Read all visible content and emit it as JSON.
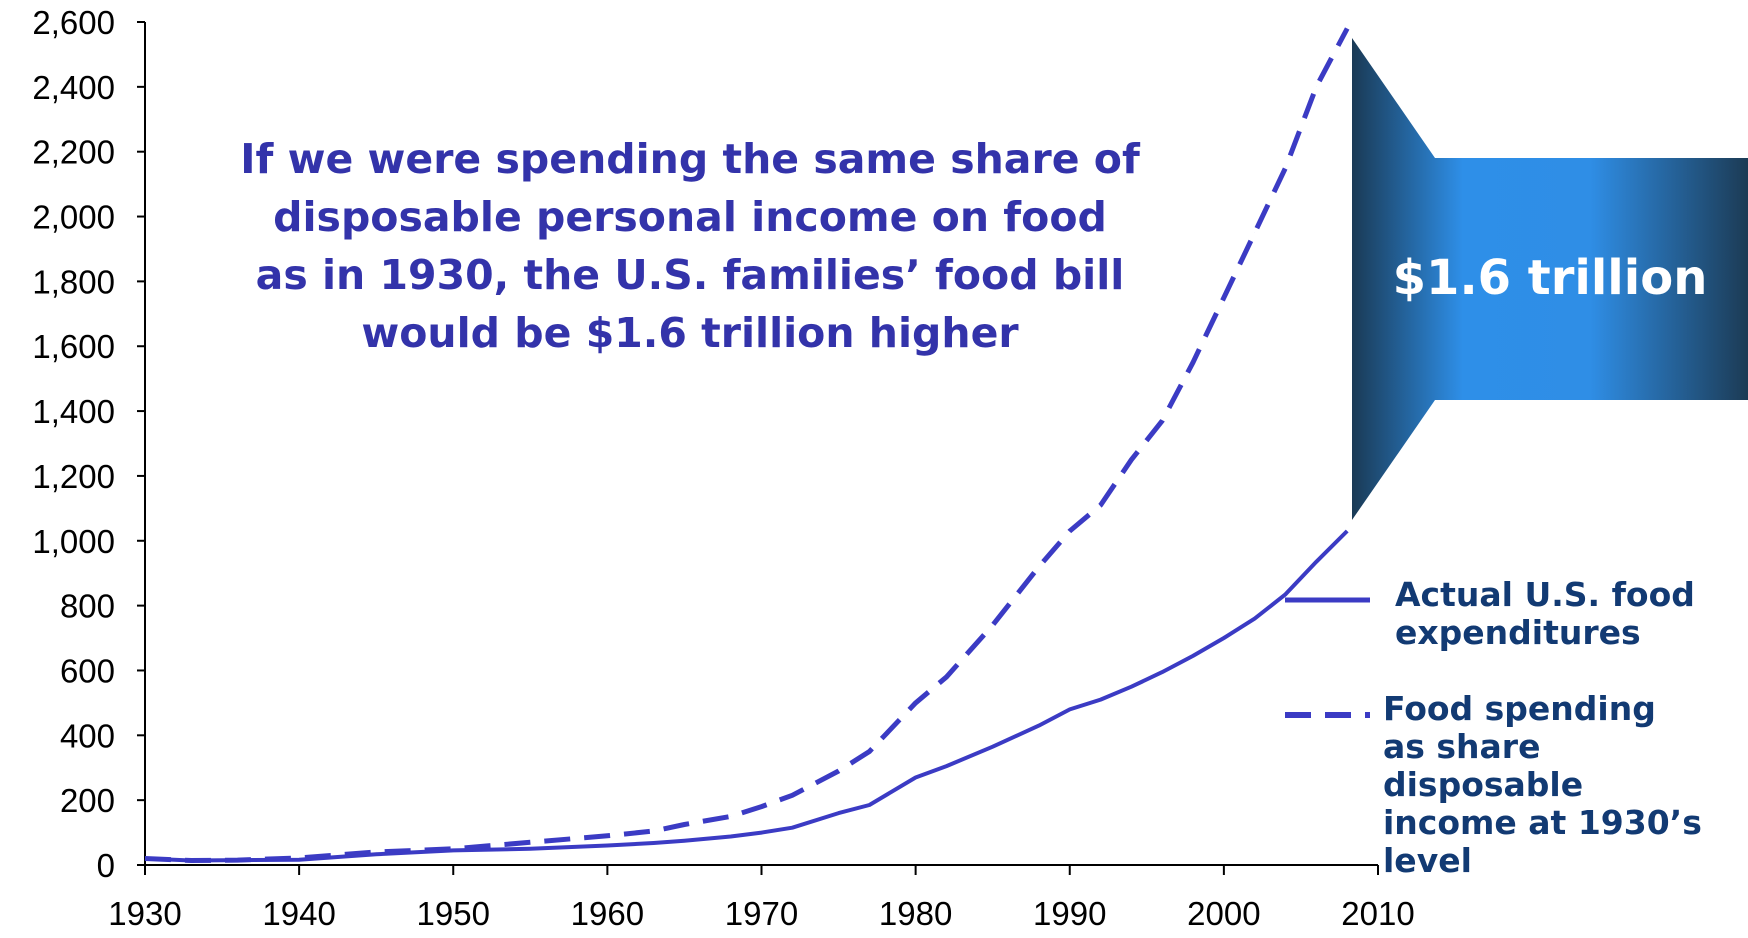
{
  "chart_data": {
    "type": "line",
    "x_range": [
      1930,
      2010
    ],
    "ylim": [
      0,
      2600
    ],
    "x_ticks": [
      "1930",
      "1940",
      "1950",
      "1960",
      "1970",
      "1980",
      "1990",
      "2000",
      "2010"
    ],
    "y_ticks": [
      "0",
      "200",
      "400",
      "600",
      "800",
      "1,000",
      "1,200",
      "1,400",
      "1,600",
      "1,800",
      "2,000",
      "2,200",
      "2,400",
      "2,600"
    ],
    "annotation": "If we were spending the same share of disposable personal income on food as in 1930, the U.S. families’ food bill would be $1.6 trillion higher",
    "callout": "$1.6 trillion",
    "colors": {
      "line": "#3b3bc4",
      "text": "#3333aa",
      "legend_text": "#123a73",
      "arrow_light": "#2e8fe8",
      "arrow_dark": "#1a3a55"
    },
    "series": [
      {
        "name": "Actual U.S. food expenditures",
        "style": "solid",
        "x": [
          1930,
          1933,
          1936,
          1940,
          1945,
          1950,
          1955,
          1960,
          1963,
          1965,
          1968,
          1970,
          1972,
          1975,
          1977,
          1980,
          1982,
          1985,
          1988,
          1990,
          1992,
          1994,
          1996,
          1998,
          2000,
          2002,
          2004,
          2006,
          2008
        ],
        "values": [
          20,
          14,
          15,
          16,
          33,
          45,
          50,
          60,
          68,
          75,
          88,
          100,
          115,
          160,
          185,
          270,
          305,
          365,
          430,
          480,
          510,
          550,
          595,
          645,
          700,
          760,
          835,
          935,
          1030
        ]
      },
      {
        "name": "Food spending as share disposable income at 1930’s  level",
        "style": "dashed",
        "x": [
          1930,
          1933,
          1936,
          1940,
          1945,
          1950,
          1955,
          1960,
          1963,
          1965,
          1968,
          1970,
          1972,
          1975,
          1977,
          1980,
          1982,
          1985,
          1988,
          1990,
          1992,
          1994,
          1996,
          1998,
          2000,
          2002,
          2004,
          2006,
          2008
        ],
        "values": [
          20,
          14,
          15,
          22,
          40,
          50,
          70,
          90,
          105,
          125,
          150,
          180,
          215,
          290,
          350,
          500,
          580,
          740,
          920,
          1030,
          1110,
          1250,
          1370,
          1550,
          1750,
          1950,
          2150,
          2400,
          2580
        ]
      }
    ]
  }
}
